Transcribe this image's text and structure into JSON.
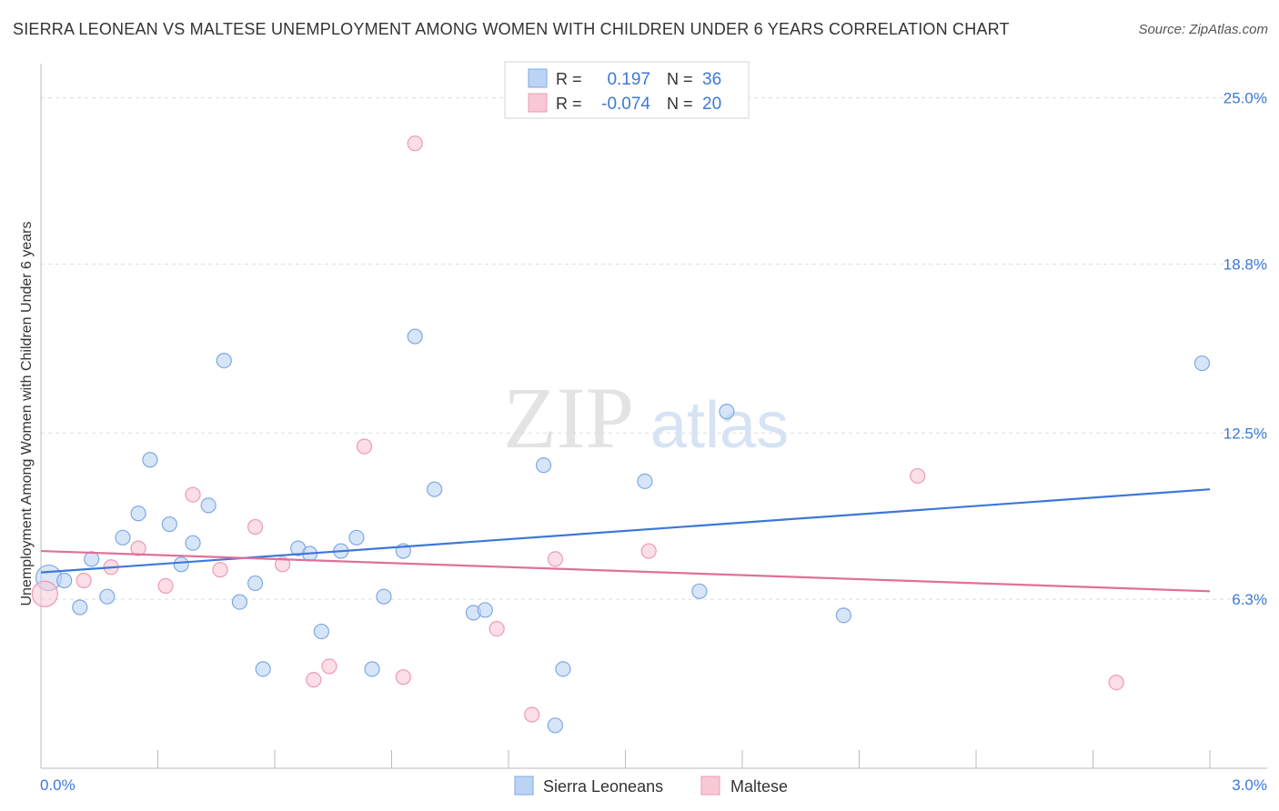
{
  "header": {
    "title": "SIERRA LEONEAN VS MALTESE UNEMPLOYMENT AMONG WOMEN WITH CHILDREN UNDER 6 YEARS CORRELATION CHART",
    "source": "Source: ZipAtlas.com"
  },
  "watermark": {
    "zip": "ZIP",
    "atlas": "atlas"
  },
  "colors": {
    "blue": "#3c78d8",
    "blue_fill": "#bcd4f4",
    "blue_stroke": "#7ea9e4",
    "pink": "#e0709a",
    "pink_fill": "#f8c8d6",
    "pink_stroke": "#ee9ab6",
    "axis_text": "#3c78d8",
    "grid": "#dddddd",
    "axis": "#bbbbbb"
  },
  "chart_data": {
    "type": "scatter",
    "title": "SIERRA LEONEAN VS MALTESE UNEMPLOYMENT AMONG WOMEN WITH CHILDREN UNDER 6 YEARS CORRELATION CHART",
    "xlabel": "",
    "ylabel": "Unemployment Among Women with Children Under 6 years",
    "xlim": [
      0,
      3.0
    ],
    "ylim": [
      0,
      26.0
    ],
    "x_tick_labels": {
      "left": "0.0%",
      "right": "3.0%"
    },
    "y_ticks": [
      {
        "value": 6.3,
        "label": "6.3%"
      },
      {
        "value": 12.5,
        "label": "12.5%"
      },
      {
        "value": 18.8,
        "label": "18.8%"
      },
      {
        "value": 25.0,
        "label": "25.0%"
      }
    ],
    "grid": true,
    "legend_top": [
      {
        "r_label": "R =",
        "r_value": "0.197",
        "n_label": "N =",
        "n_value": "36"
      },
      {
        "r_label": "R =",
        "r_value": "-0.074",
        "n_label": "N =",
        "n_value": "20"
      }
    ],
    "legend_bottom": [
      "Sierra Leoneans",
      "Maltese"
    ],
    "series": [
      {
        "name": "Sierra Leoneans",
        "trend": {
          "x": [
            0.0,
            3.0
          ],
          "y": [
            7.3,
            10.4
          ]
        },
        "points": [
          {
            "x": 0.02,
            "y": 7.1,
            "big": true
          },
          {
            "x": 0.06,
            "y": 7.0
          },
          {
            "x": 0.1,
            "y": 6.0
          },
          {
            "x": 0.13,
            "y": 7.8
          },
          {
            "x": 0.17,
            "y": 6.4
          },
          {
            "x": 0.21,
            "y": 8.6
          },
          {
            "x": 0.25,
            "y": 9.5
          },
          {
            "x": 0.28,
            "y": 11.5
          },
          {
            "x": 0.33,
            "y": 9.1
          },
          {
            "x": 0.36,
            "y": 7.6
          },
          {
            "x": 0.39,
            "y": 8.4
          },
          {
            "x": 0.43,
            "y": 9.8
          },
          {
            "x": 0.47,
            "y": 15.2
          },
          {
            "x": 0.51,
            "y": 6.2
          },
          {
            "x": 0.55,
            "y": 6.9
          },
          {
            "x": 0.57,
            "y": 3.7
          },
          {
            "x": 0.66,
            "y": 8.2
          },
          {
            "x": 0.69,
            "y": 8.0
          },
          {
            "x": 0.72,
            "y": 5.1
          },
          {
            "x": 0.77,
            "y": 8.1
          },
          {
            "x": 0.81,
            "y": 8.6
          },
          {
            "x": 0.85,
            "y": 3.7
          },
          {
            "x": 0.88,
            "y": 6.4
          },
          {
            "x": 0.93,
            "y": 8.1
          },
          {
            "x": 0.96,
            "y": 16.1
          },
          {
            "x": 1.01,
            "y": 10.4
          },
          {
            "x": 1.11,
            "y": 5.8
          },
          {
            "x": 1.14,
            "y": 5.9
          },
          {
            "x": 1.29,
            "y": 11.3
          },
          {
            "x": 1.32,
            "y": 1.6
          },
          {
            "x": 1.34,
            "y": 3.7
          },
          {
            "x": 1.55,
            "y": 10.7
          },
          {
            "x": 1.69,
            "y": 6.6
          },
          {
            "x": 1.76,
            "y": 13.3
          },
          {
            "x": 2.06,
            "y": 5.7
          },
          {
            "x": 2.98,
            "y": 15.1
          }
        ]
      },
      {
        "name": "Maltese",
        "trend": {
          "x": [
            0.0,
            3.0
          ],
          "y": [
            8.1,
            6.6
          ]
        },
        "points": [
          {
            "x": 0.01,
            "y": 6.5,
            "big": true
          },
          {
            "x": 0.11,
            "y": 7.0
          },
          {
            "x": 0.18,
            "y": 7.5
          },
          {
            "x": 0.25,
            "y": 8.2
          },
          {
            "x": 0.32,
            "y": 6.8
          },
          {
            "x": 0.39,
            "y": 10.2
          },
          {
            "x": 0.46,
            "y": 7.4
          },
          {
            "x": 0.55,
            "y": 9.0
          },
          {
            "x": 0.62,
            "y": 7.6
          },
          {
            "x": 0.7,
            "y": 3.3
          },
          {
            "x": 0.74,
            "y": 3.8
          },
          {
            "x": 0.83,
            "y": 12.0
          },
          {
            "x": 0.93,
            "y": 3.4
          },
          {
            "x": 0.96,
            "y": 23.3
          },
          {
            "x": 1.17,
            "y": 5.2
          },
          {
            "x": 1.26,
            "y": 2.0
          },
          {
            "x": 1.32,
            "y": 7.8
          },
          {
            "x": 1.56,
            "y": 8.1
          },
          {
            "x": 2.25,
            "y": 10.9
          },
          {
            "x": 2.76,
            "y": 3.2
          }
        ]
      }
    ]
  }
}
